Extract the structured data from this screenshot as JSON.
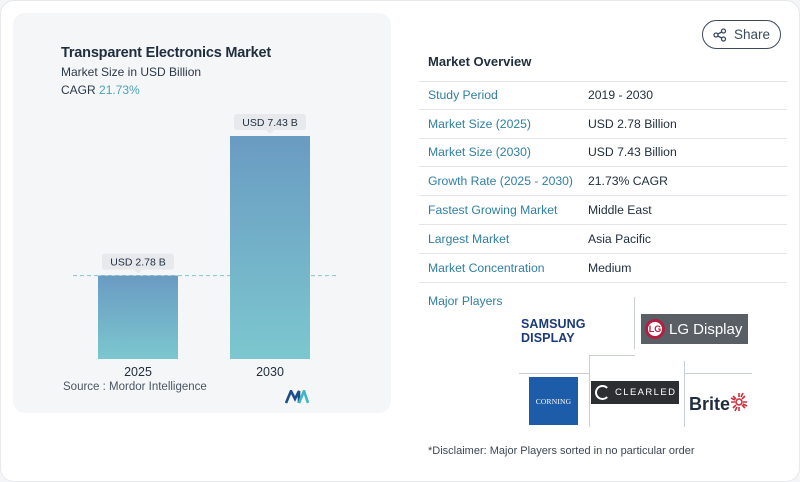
{
  "share": {
    "label": "Share"
  },
  "chart_data": {
    "type": "bar",
    "title": "Transparent Electronics Market",
    "subtitle": "Market Size in USD Billion",
    "cagr_label": "CAGR",
    "cagr_value": "21.73%",
    "categories": [
      "2025",
      "2030"
    ],
    "values": [
      2.78,
      7.43
    ],
    "data_labels": [
      "USD 2.78 B",
      "USD 7.43 B"
    ],
    "xlabel": "",
    "ylabel": "",
    "ylim": [
      0,
      7.43
    ],
    "grid": false,
    "colors": {
      "bar_top": "#6a9bc2",
      "bar_bottom": "#7cc7cf",
      "label_bg": "#e7e9ec",
      "dashed_line": "#7fc6cc"
    }
  },
  "source": "Source :  Mordor Intelligence",
  "overview": {
    "title": "Market Overview",
    "rows": [
      {
        "label": "Study Period",
        "value": "2019 - 2030"
      },
      {
        "label": "Market Size (2025)",
        "value": "USD 2.78 Billion"
      },
      {
        "label": "Market Size (2030)",
        "value": "USD 7.43 Billion"
      },
      {
        "label": "Growth Rate (2025 - 2030)",
        "value": "21.73% CAGR"
      },
      {
        "label": "Fastest Growing Market",
        "value": "Middle East"
      },
      {
        "label": "Largest Market",
        "value": "Asia Pacific"
      },
      {
        "label": "Market Concentration",
        "value": "Medium"
      }
    ],
    "players_label": "Major Players"
  },
  "players": {
    "samsung": "SAMSUNG DISPLAY",
    "lg_mark": "LG",
    "lg": "LG Display",
    "corning": "CORNING",
    "clearled": "CLEARLED",
    "brite": "Brite"
  },
  "disclaimer": "*Disclaimer: Major Players sorted in no particular order",
  "accent_color": "#2f7fa1"
}
